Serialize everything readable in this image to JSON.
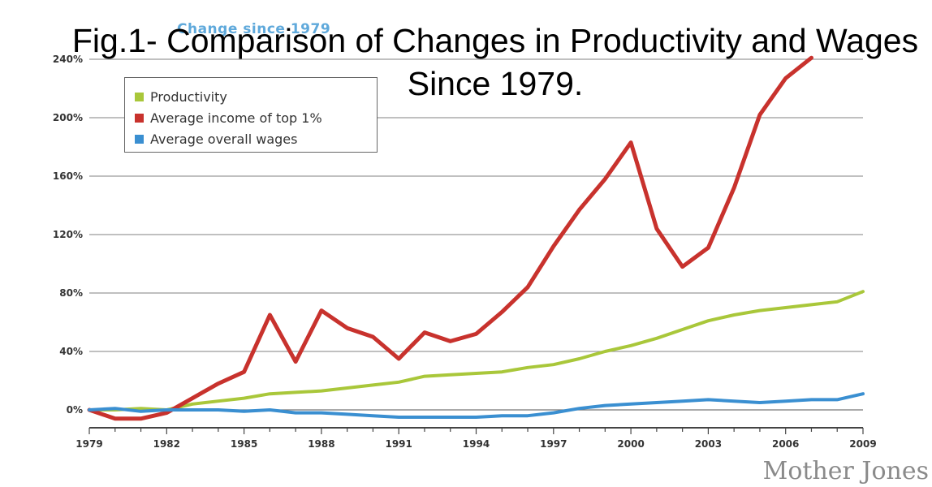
{
  "figure_title": "Fig.1- Comparison of Changes in Productivity and Wages Since 1979.",
  "credit": "Mother Jones",
  "chart_data": {
    "type": "line",
    "title": "Change since 1979",
    "xlabel": "",
    "ylabel": "",
    "ylim": [
      0,
      240
    ],
    "xlim": [
      1979,
      2009
    ],
    "x": [
      1979,
      1980,
      1981,
      1982,
      1983,
      1984,
      1985,
      1986,
      1987,
      1988,
      1989,
      1990,
      1991,
      1992,
      1993,
      1994,
      1995,
      1996,
      1997,
      1998,
      1999,
      2000,
      2001,
      2002,
      2003,
      2004,
      2005,
      2006,
      2007,
      2008,
      2009
    ],
    "y_ticks": [
      "0%",
      "40%",
      "80%",
      "120%",
      "160%",
      "200%",
      "240%"
    ],
    "y_tick_values": [
      0,
      40,
      80,
      120,
      160,
      200,
      240
    ],
    "x_ticks": [
      "1979",
      "1982",
      "1985",
      "1988",
      "1991",
      "1994",
      "1997",
      "2000",
      "2003",
      "2006",
      "2009"
    ],
    "x_tick_values": [
      1979,
      1982,
      1985,
      1988,
      1991,
      1994,
      1997,
      2000,
      2003,
      2006,
      2009
    ],
    "legend_position": "top-left",
    "grid": true,
    "series": [
      {
        "name": "Productivity",
        "color": "#a9c73a",
        "values": [
          0,
          0,
          1,
          0,
          4,
          6,
          8,
          11,
          12,
          13,
          15,
          17,
          19,
          23,
          24,
          25,
          26,
          29,
          31,
          35,
          40,
          44,
          49,
          55,
          61,
          65,
          68,
          70,
          72,
          74,
          81
        ]
      },
      {
        "name": "Average income of top 1%",
        "color": "#c8322d",
        "values": [
          0,
          -6,
          -6,
          -2,
          8,
          18,
          26,
          65,
          33,
          68,
          56,
          50,
          35,
          53,
          47,
          52,
          67,
          84,
          112,
          137,
          158,
          183,
          124,
          98,
          111,
          152,
          202,
          227,
          241,
          null,
          null
        ]
      },
      {
        "name": "Average overall wages",
        "color": "#3a8fd1",
        "values": [
          0,
          1,
          -1,
          0,
          0,
          0,
          -1,
          0,
          -2,
          -2,
          -3,
          -4,
          -5,
          -5,
          -5,
          -5,
          -4,
          -4,
          -2,
          1,
          3,
          4,
          5,
          6,
          7,
          6,
          5,
          6,
          7,
          7,
          11
        ]
      }
    ]
  }
}
